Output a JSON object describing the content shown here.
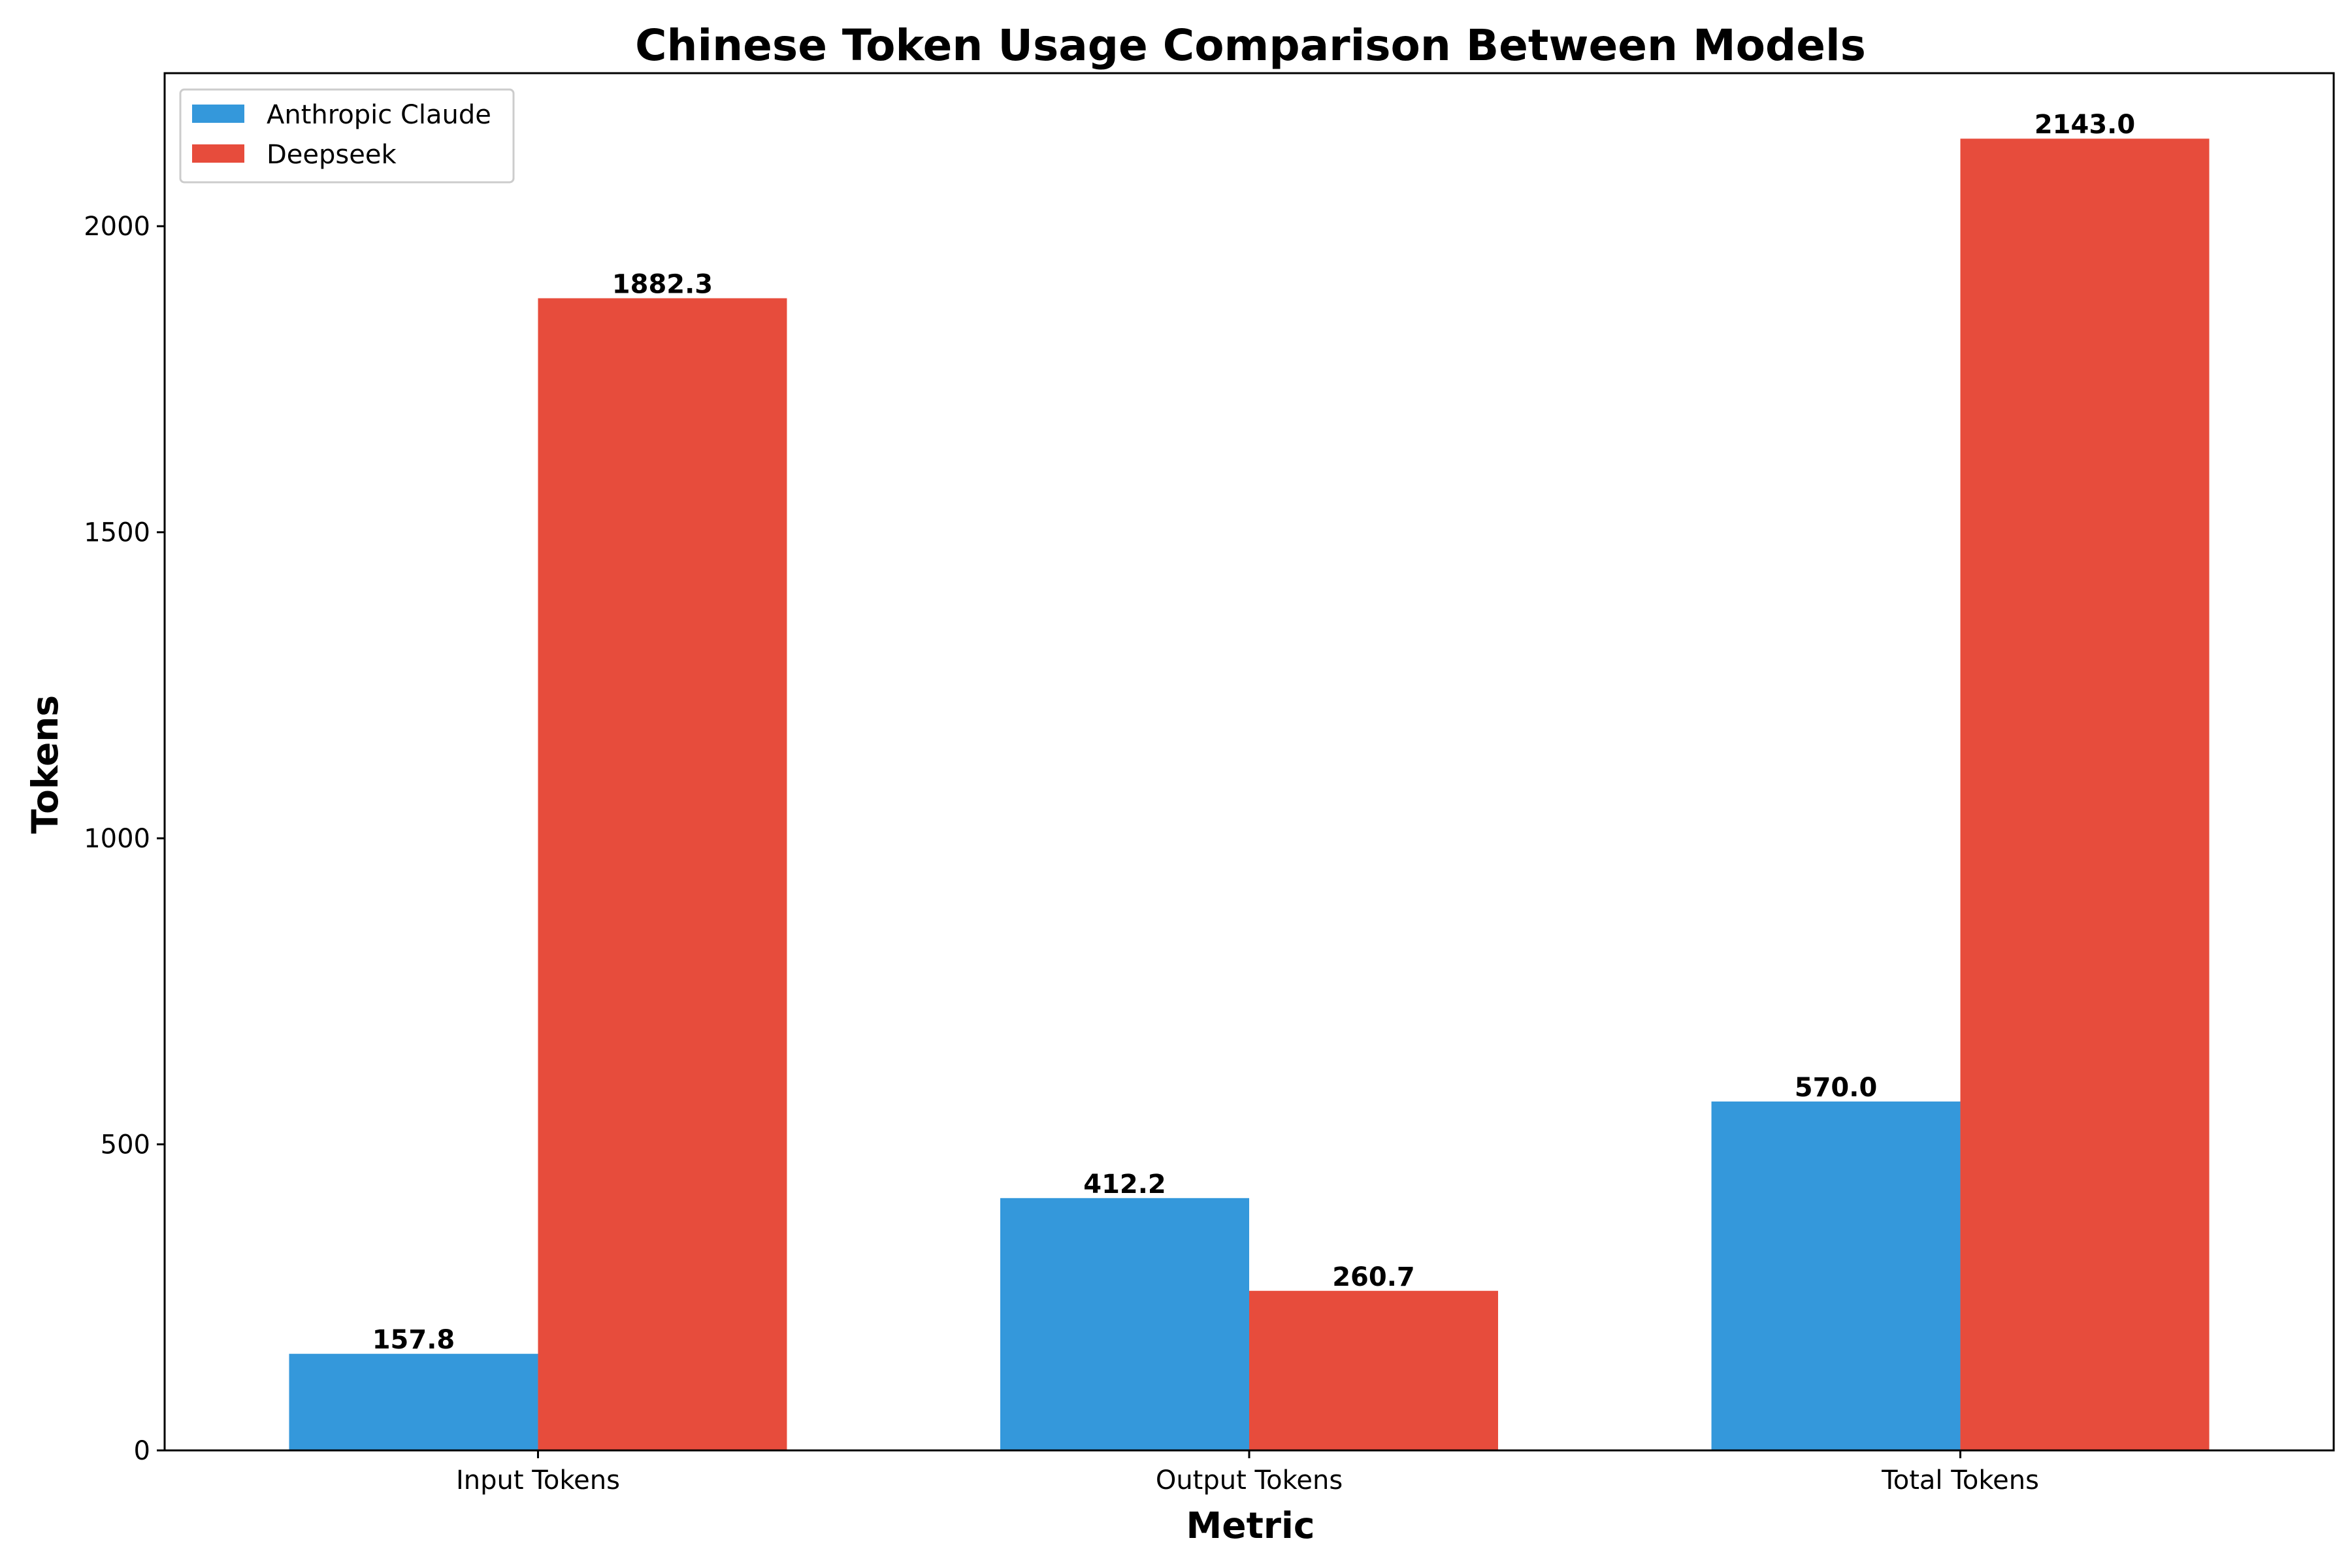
{
  "chart_data": {
    "type": "bar",
    "title": "Chinese Token Usage Comparison Between Models",
    "xlabel": "Metric",
    "ylabel": "Tokens",
    "categories": [
      "Input Tokens",
      "Output Tokens",
      "Total Tokens"
    ],
    "series": [
      {
        "name": "Anthropic Claude",
        "color": "#3498db",
        "values": [
          157.8,
          412.2,
          570.0
        ],
        "labels": [
          "157.8",
          "412.2",
          "570.0"
        ]
      },
      {
        "name": "Deepseek",
        "color": "#e74c3c",
        "values": [
          1882.3,
          260.7,
          2143.0
        ],
        "labels": [
          "1882.3",
          "260.7",
          "2143.0"
        ]
      }
    ],
    "ylim": [
      0,
      2250
    ],
    "yticks": [
      0,
      500,
      1000,
      1500,
      2000
    ],
    "ytick_labels": [
      "0",
      "500",
      "1000",
      "1500",
      "2000"
    ],
    "grid": false,
    "legend_position": "top-left"
  }
}
